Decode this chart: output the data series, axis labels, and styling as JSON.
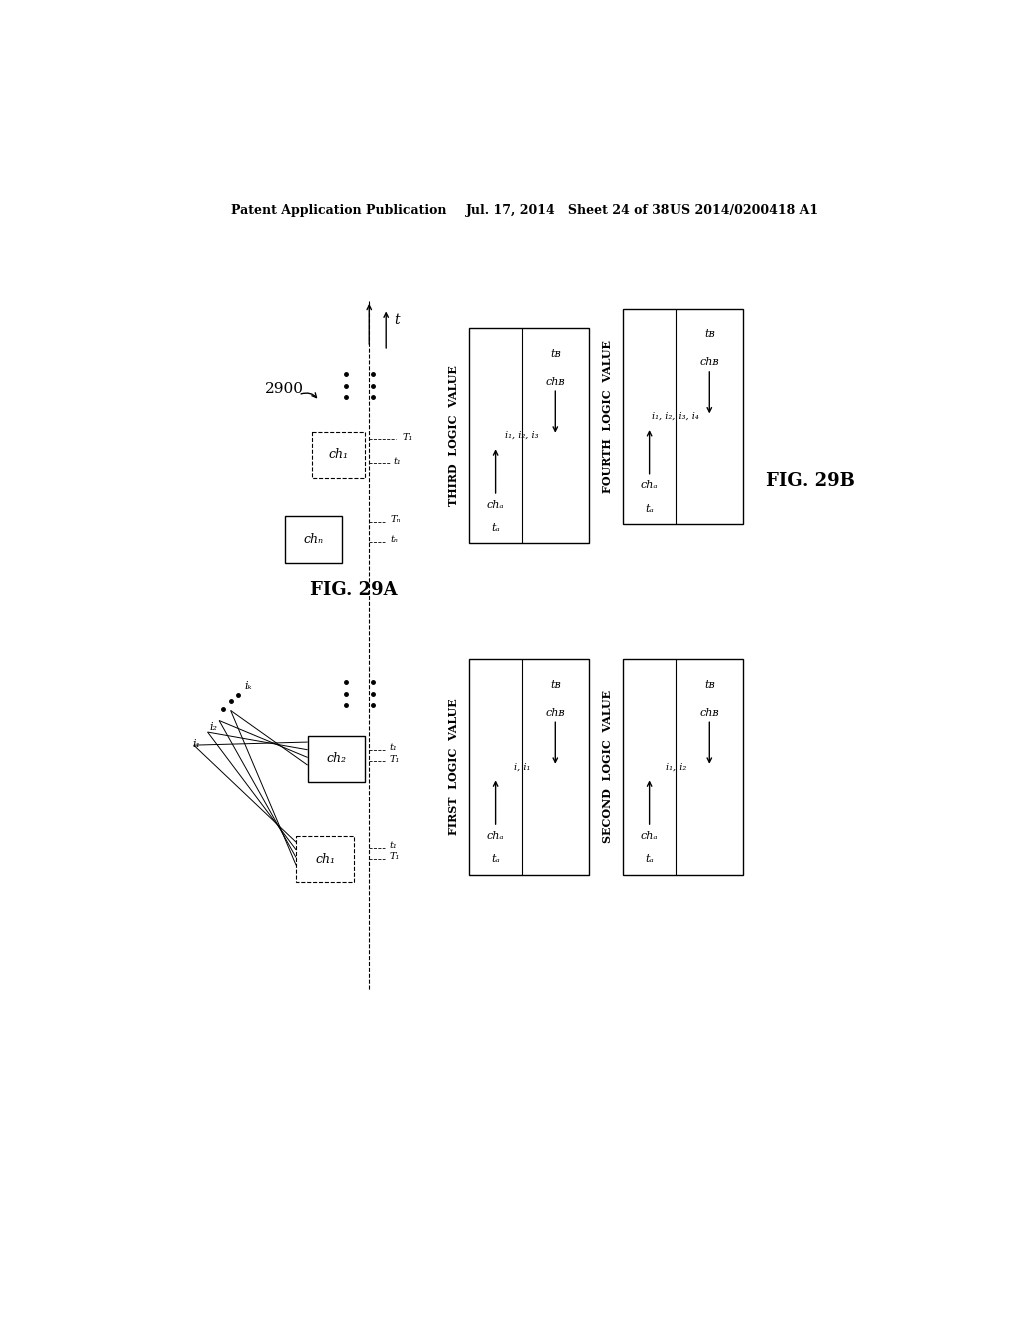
{
  "bg_color": "#ffffff",
  "header_left": "Patent Application Publication",
  "header_mid": "Jul. 17, 2014   Sheet 24 of 38",
  "header_right": "US 2014/0200418 A1"
}
